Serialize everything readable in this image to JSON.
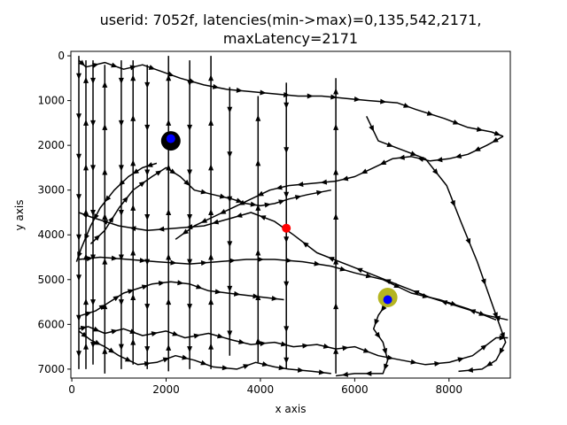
{
  "chart_data": {
    "type": "line",
    "title_line1": "userid: 7052f, latencies(min->max)=0,135,542,2171,",
    "title_line2": "maxLatency=2171",
    "xlabel": "x axis",
    "ylabel": "y axis",
    "xlim": [
      -20,
      9300
    ],
    "ylim": [
      7200,
      -100
    ],
    "x_ticks": [
      0,
      2000,
      4000,
      6000,
      8000
    ],
    "x_tick_labels": [
      "0",
      "2000",
      "4000",
      "6000",
      "8000"
    ],
    "y_ticks": [
      0,
      1000,
      2000,
      3000,
      4000,
      5000,
      6000,
      7000
    ],
    "y_tick_labels": [
      "0",
      "1000",
      "2000",
      "3000",
      "4000",
      "5000",
      "6000",
      "7000"
    ],
    "grid": false,
    "series": [
      {
        "points": [
          [
            150,
            6100
          ],
          [
            350,
            6050
          ],
          [
            700,
            6200
          ],
          [
            1100,
            6100
          ],
          [
            1500,
            6250
          ],
          [
            2000,
            6150
          ],
          [
            2400,
            6300
          ],
          [
            2900,
            6200
          ],
          [
            3400,
            6350
          ],
          [
            3800,
            6450
          ],
          [
            4300,
            6400
          ],
          [
            4700,
            6500
          ],
          [
            5200,
            6450
          ],
          [
            5600,
            6550
          ],
          [
            6000,
            6500
          ],
          [
            6500,
            6700
          ],
          [
            7000,
            6800
          ],
          [
            7500,
            6900
          ],
          [
            8000,
            6850
          ],
          [
            8500,
            6700
          ],
          [
            9000,
            6300
          ],
          [
            9250,
            6300
          ]
        ]
      },
      {
        "points": [
          [
            9250,
            5900
          ],
          [
            8800,
            5800
          ],
          [
            8200,
            5600
          ],
          [
            7600,
            5400
          ],
          [
            7000,
            5150
          ],
          [
            6400,
            4900
          ],
          [
            5800,
            4650
          ],
          [
            5200,
            4400
          ],
          [
            4700,
            4000
          ],
          [
            4300,
            3700
          ],
          [
            3800,
            3500
          ],
          [
            3300,
            3650
          ],
          [
            2800,
            3800
          ],
          [
            2200,
            3850
          ],
          [
            1600,
            3900
          ],
          [
            1000,
            3800
          ],
          [
            400,
            3600
          ],
          [
            150,
            3500
          ]
        ]
      },
      {
        "points": [
          [
            150,
            4550
          ],
          [
            600,
            4500
          ],
          [
            1200,
            4550
          ],
          [
            1800,
            4600
          ],
          [
            2500,
            4650
          ],
          [
            3100,
            4600
          ],
          [
            3700,
            4550
          ],
          [
            4300,
            4550
          ],
          [
            4900,
            4600
          ],
          [
            5500,
            4700
          ],
          [
            6000,
            4850
          ],
          [
            6600,
            5000
          ],
          [
            7200,
            5300
          ],
          [
            7800,
            5450
          ],
          [
            8400,
            5650
          ],
          [
            9000,
            5900
          ]
        ]
      },
      {
        "points": [
          [
            150,
            100
          ],
          [
            300,
            250
          ],
          [
            700,
            150
          ],
          [
            1100,
            300
          ],
          [
            1500,
            200
          ],
          [
            1900,
            350
          ],
          [
            2300,
            500
          ],
          [
            2800,
            650
          ],
          [
            3300,
            750
          ],
          [
            3800,
            800
          ],
          [
            4300,
            850
          ],
          [
            4800,
            900
          ],
          [
            5300,
            900
          ],
          [
            5800,
            950
          ],
          [
            6300,
            1000
          ],
          [
            6900,
            1050
          ],
          [
            7300,
            1200
          ],
          [
            7900,
            1400
          ],
          [
            8400,
            1600
          ],
          [
            8900,
            1700
          ],
          [
            9150,
            1800
          ]
        ]
      },
      {
        "points": [
          [
            9150,
            1800
          ],
          [
            8800,
            2000
          ],
          [
            8400,
            2200
          ],
          [
            8000,
            2300
          ],
          [
            7600,
            2350
          ],
          [
            7200,
            2250
          ],
          [
            6800,
            2300
          ],
          [
            6400,
            2500
          ],
          [
            6000,
            2700
          ],
          [
            5600,
            2800
          ],
          [
            5100,
            2850
          ],
          [
            4600,
            2900
          ],
          [
            4200,
            3000
          ],
          [
            3800,
            3200
          ],
          [
            3400,
            3400
          ],
          [
            3000,
            3600
          ],
          [
            2600,
            3800
          ],
          [
            2200,
            4100
          ]
        ]
      },
      {
        "points": [
          [
            6250,
            1350
          ],
          [
            6500,
            1900
          ],
          [
            7000,
            2100
          ],
          [
            7500,
            2300
          ],
          [
            7950,
            2900
          ],
          [
            8250,
            3700
          ],
          [
            8600,
            4600
          ],
          [
            8900,
            5500
          ],
          [
            9100,
            6100
          ],
          [
            9200,
            6400
          ],
          [
            9000,
            6800
          ],
          [
            8700,
            7000
          ],
          [
            8200,
            7050
          ]
        ]
      },
      {
        "points": [
          [
            6700,
            5500
          ],
          [
            6500,
            5800
          ],
          [
            6400,
            6100
          ],
          [
            6600,
            6400
          ],
          [
            6700,
            6800
          ],
          [
            6600,
            7100
          ],
          [
            6000,
            7100
          ],
          [
            5600,
            7150
          ]
        ]
      },
      {
        "points": [
          [
            150,
            6150
          ],
          [
            400,
            6350
          ],
          [
            700,
            6500
          ],
          [
            1000,
            6700
          ],
          [
            1400,
            6900
          ],
          [
            1800,
            6850
          ],
          [
            2200,
            6700
          ],
          [
            2600,
            6800
          ],
          [
            3000,
            6950
          ],
          [
            3500,
            7000
          ],
          [
            3900,
            6850
          ],
          [
            4300,
            6950
          ],
          [
            4600,
            7000
          ],
          [
            5100,
            7050
          ],
          [
            5500,
            7100
          ]
        ]
      },
      {
        "points": [
          [
            200,
            5800
          ],
          [
            500,
            5700
          ],
          [
            800,
            5500
          ],
          [
            1100,
            5300
          ],
          [
            1400,
            5200
          ],
          [
            1700,
            5100
          ],
          [
            2100,
            5050
          ],
          [
            2500,
            5100
          ],
          [
            2900,
            5250
          ],
          [
            3300,
            5300
          ],
          [
            3700,
            5350
          ],
          [
            4100,
            5400
          ],
          [
            4500,
            5450
          ]
        ]
      },
      {
        "points": [
          [
            400,
            4200
          ],
          [
            700,
            3900
          ],
          [
            1000,
            3400
          ],
          [
            1300,
            3000
          ],
          [
            1700,
            2700
          ],
          [
            2000,
            2500
          ],
          [
            2300,
            2700
          ],
          [
            2600,
            3000
          ],
          [
            3000,
            3100
          ],
          [
            3400,
            3200
          ],
          [
            3700,
            3300
          ],
          [
            4000,
            3350
          ],
          [
            4300,
            3300
          ],
          [
            4600,
            3200
          ],
          [
            5000,
            3100
          ],
          [
            5500,
            3000
          ]
        ]
      },
      {
        "points": [
          [
            1800,
            2400
          ],
          [
            1500,
            2500
          ],
          [
            1200,
            2700
          ],
          [
            900,
            3000
          ],
          [
            600,
            3400
          ],
          [
            400,
            3800
          ],
          [
            200,
            4300
          ],
          [
            100,
            4600
          ]
        ]
      },
      {
        "points": [
          [
            150,
            0
          ],
          [
            150,
            900
          ],
          [
            150,
            1800
          ],
          [
            150,
            2700
          ],
          [
            150,
            3600
          ],
          [
            150,
            4500
          ],
          [
            150,
            5400
          ],
          [
            150,
            6300
          ],
          [
            150,
            7000
          ]
        ]
      },
      {
        "points": [
          [
            300,
            7000
          ],
          [
            300,
            6000
          ],
          [
            300,
            5000
          ],
          [
            300,
            4000
          ],
          [
            300,
            3000
          ],
          [
            300,
            2000
          ],
          [
            300,
            1000
          ],
          [
            300,
            100
          ]
        ]
      },
      {
        "points": [
          [
            450,
            100
          ],
          [
            450,
            1000
          ],
          [
            450,
            2000
          ],
          [
            450,
            3000
          ],
          [
            450,
            4000
          ],
          [
            450,
            5000
          ],
          [
            450,
            6000
          ],
          [
            450,
            6900
          ]
        ]
      },
      {
        "points": [
          [
            700,
            7100
          ],
          [
            700,
            6100
          ],
          [
            700,
            5100
          ],
          [
            700,
            4100
          ],
          [
            700,
            3100
          ],
          [
            700,
            2100
          ],
          [
            700,
            1100
          ],
          [
            700,
            200
          ]
        ]
      },
      {
        "points": [
          [
            1050,
            100
          ],
          [
            1050,
            1000
          ],
          [
            1050,
            2000
          ],
          [
            1050,
            3000
          ],
          [
            1050,
            4000
          ],
          [
            1050,
            5000
          ],
          [
            1050,
            6000
          ],
          [
            1050,
            7000
          ]
        ]
      },
      {
        "points": [
          [
            1300,
            6900
          ],
          [
            1300,
            5900
          ],
          [
            1300,
            4900
          ],
          [
            1300,
            3900
          ],
          [
            1300,
            2900
          ],
          [
            1300,
            1900
          ],
          [
            1300,
            900
          ],
          [
            1300,
            100
          ]
        ]
      },
      {
        "points": [
          [
            1600,
            200
          ],
          [
            1600,
            1100
          ],
          [
            1600,
            2100
          ],
          [
            1600,
            3100
          ],
          [
            1600,
            4100
          ],
          [
            1600,
            5100
          ],
          [
            1600,
            6100
          ],
          [
            1600,
            7000
          ]
        ]
      },
      {
        "points": [
          [
            2050,
            7050
          ],
          [
            2050,
            6000
          ],
          [
            2050,
            5000
          ],
          [
            2050,
            4000
          ],
          [
            2050,
            3000
          ],
          [
            2050,
            2000
          ],
          [
            2050,
            1000
          ],
          [
            2050,
            0
          ]
        ]
      },
      {
        "points": [
          [
            2500,
            100
          ],
          [
            2500,
            1100
          ],
          [
            2500,
            2100
          ],
          [
            2500,
            3100
          ],
          [
            2500,
            4100
          ],
          [
            2500,
            5100
          ],
          [
            2500,
            6100
          ],
          [
            2500,
            7000
          ]
        ]
      },
      {
        "points": [
          [
            2950,
            7000
          ],
          [
            2950,
            6000
          ],
          [
            2950,
            5000
          ],
          [
            2950,
            4000
          ],
          [
            2950,
            3000
          ],
          [
            2950,
            2000
          ],
          [
            2950,
            1000
          ],
          [
            2950,
            0
          ]
        ]
      },
      {
        "points": [
          [
            3350,
            700
          ],
          [
            3350,
            1700
          ],
          [
            3350,
            2700
          ],
          [
            3350,
            3700
          ],
          [
            3350,
            4700
          ],
          [
            3350,
            5700
          ],
          [
            3350,
            6700
          ]
        ]
      },
      {
        "points": [
          [
            3950,
            6850
          ],
          [
            3950,
            5900
          ],
          [
            3950,
            4900
          ],
          [
            3950,
            3900
          ],
          [
            3950,
            2900
          ],
          [
            3950,
            1900
          ],
          [
            3950,
            900
          ]
        ]
      },
      {
        "points": [
          [
            4550,
            600
          ],
          [
            4550,
            1600
          ],
          [
            4550,
            2600
          ],
          [
            4550,
            3600
          ],
          [
            4550,
            4600
          ],
          [
            4550,
            5600
          ],
          [
            4550,
            6600
          ],
          [
            4550,
            7000
          ]
        ]
      },
      {
        "points": [
          [
            5600,
            7100
          ],
          [
            5600,
            6100
          ],
          [
            5600,
            5100
          ],
          [
            5600,
            4100
          ],
          [
            5600,
            3100
          ],
          [
            5600,
            2100
          ],
          [
            5600,
            1100
          ],
          [
            5600,
            500
          ]
        ]
      }
    ],
    "markers": [
      {
        "x": 2100,
        "y": 1900,
        "radius": 11,
        "color": "#000000"
      },
      {
        "x": 2100,
        "y": 1850,
        "radius": 5,
        "color": "#0000ff"
      },
      {
        "x": 6700,
        "y": 5400,
        "radius": 11,
        "color": "#b5b521"
      },
      {
        "x": 6700,
        "y": 5450,
        "radius": 5,
        "color": "#0000ff"
      },
      {
        "x": 4550,
        "y": 3850,
        "radius": 5,
        "color": "#ff0000"
      }
    ]
  }
}
